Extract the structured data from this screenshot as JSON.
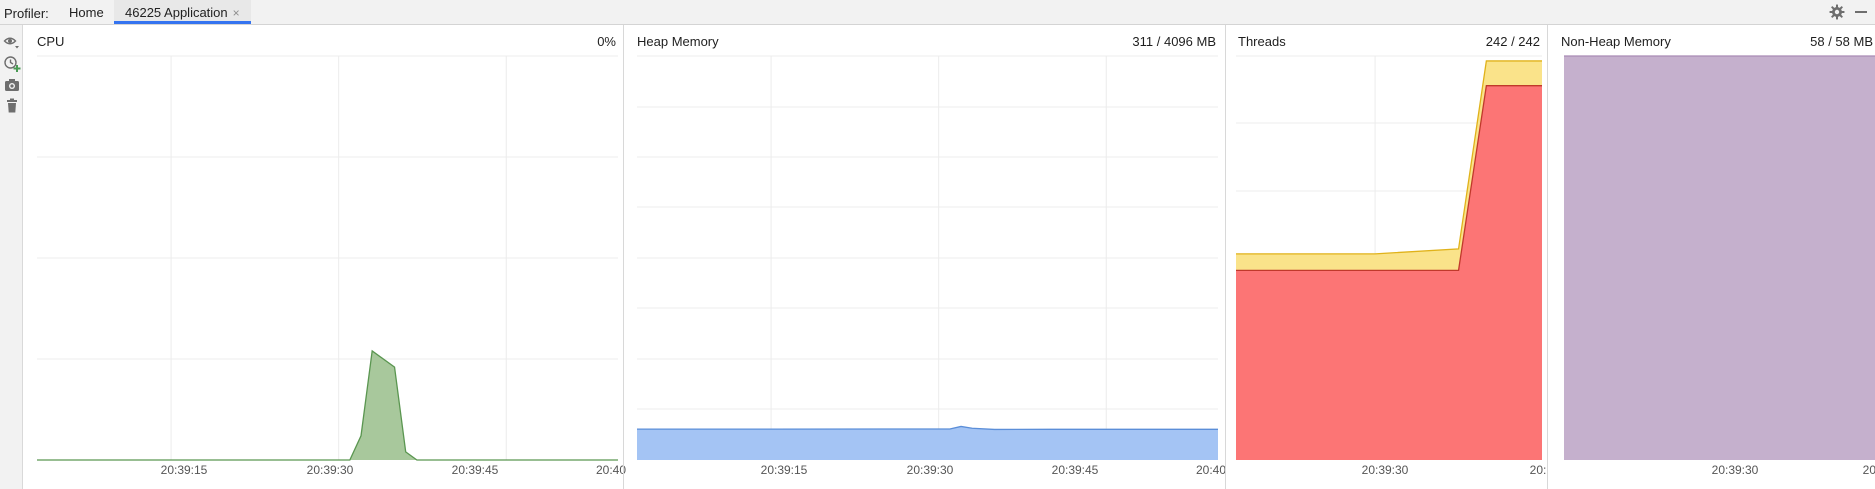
{
  "toolbar": {
    "label": "Profiler:",
    "tabs": [
      {
        "label": "Home",
        "active": false
      },
      {
        "label": "46225 Application",
        "active": true,
        "close_glyph": "×"
      }
    ],
    "right_icons": [
      "settings-gear-icon",
      "minimize-icon"
    ]
  },
  "sidebar": {
    "buttons": [
      {
        "icon": "eye-icon"
      },
      {
        "icon": "cpu-sample-icon"
      },
      {
        "icon": "camera-icon"
      },
      {
        "icon": "trash-icon"
      }
    ]
  },
  "colors": {
    "cpu_fill": "#a8c89c",
    "cpu_line": "#5a9650",
    "heap_fill": "#a4c4f4",
    "heap_line": "#5b8ed8",
    "threads_red": "#fc7575",
    "threads_yellow": "#fae38a",
    "nonheap_fill": "#c5b0cd",
    "grid": "#ececec"
  },
  "panels": {
    "cpu": {
      "title": "CPU",
      "value": "0%"
    },
    "heap": {
      "title": "Heap Memory",
      "value": "311 / 4096 MB"
    },
    "threads": {
      "title": "Threads",
      "value": "242 / 242"
    },
    "nonheap": {
      "title": "Non-Heap Memory",
      "value": "58 / 58 MB"
    }
  },
  "chart_data": [
    {
      "type": "area",
      "name": "cpu",
      "x": [
        "20:39:08",
        "20:39:36",
        "20:39:37",
        "20:39:38",
        "20:39:40",
        "20:39:41",
        "20:39:42",
        "20:40:00"
      ],
      "y": [
        0,
        0,
        6,
        27,
        23,
        2,
        0,
        0
      ],
      "ylim": [
        0,
        100
      ],
      "xticks": [
        "20:39:15",
        "20:39:30",
        "20:39:45",
        "20:40"
      ],
      "grid": true
    },
    {
      "type": "area",
      "name": "heap",
      "x": [
        "20:39:08",
        "20:39:20",
        "20:39:30",
        "20:39:36",
        "20:39:37",
        "20:39:38",
        "20:39:40",
        "20:39:45",
        "20:40:00"
      ],
      "y": [
        313,
        313,
        314,
        314,
        340,
        322,
        310,
        311,
        311
      ],
      "ylim": [
        0,
        4096
      ],
      "xticks": [
        "20:39:15",
        "20:39:30",
        "20:39:45",
        "20:40"
      ],
      "grid": true
    },
    {
      "type": "area",
      "series": [
        {
          "x": [
            "20:39:25",
            "20:39:30",
            "20:39:33",
            "20:39:34",
            "20:39:36"
          ],
          "y": [
            115,
            115,
            115,
            227,
            227
          ]
        },
        {
          "x": [
            "20:39:25",
            "20:39:30",
            "20:39:33",
            "20:39:34",
            "20:39:36"
          ],
          "y": [
            125,
            125,
            128,
            242,
            242
          ]
        }
      ],
      "ylim": [
        0,
        245
      ],
      "xticks": [
        "20:39:30",
        "20:"
      ],
      "grid": true
    },
    {
      "type": "area",
      "series": [
        {
          "x": [
            "20:39:25",
            "20:39:36"
          ],
          "y": [
            58,
            58
          ]
        }
      ],
      "ylim": [
        0,
        58
      ],
      "xticks": [
        "20:39:30",
        "20:"
      ],
      "grid": true
    }
  ]
}
